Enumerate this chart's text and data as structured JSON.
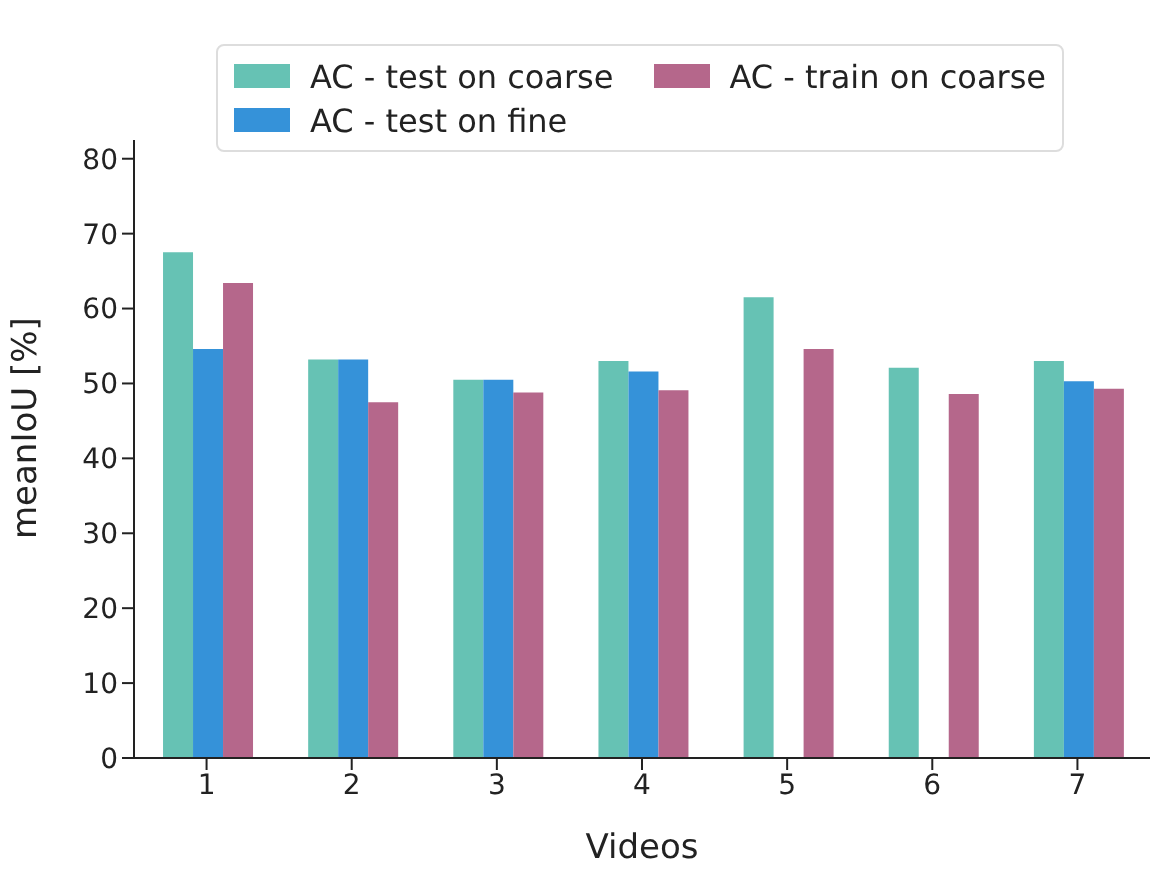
{
  "chart_data": {
    "type": "bar",
    "xlabel": "Videos",
    "ylabel": "meanIoU [%]",
    "categories": [
      "1",
      "2",
      "3",
      "4",
      "5",
      "6",
      "7"
    ],
    "series": [
      {
        "name": "AC - test on coarse",
        "color": "#66c2b4",
        "values": [
          67.5,
          53.2,
          50.5,
          53.0,
          61.5,
          52.1,
          53.0
        ]
      },
      {
        "name": "AC - test on fine",
        "color": "#3592d9",
        "values": [
          54.6,
          53.2,
          50.5,
          51.6,
          null,
          null,
          50.3
        ]
      },
      {
        "name": "AC - train on coarse",
        "color": "#b5678b",
        "values": [
          63.4,
          47.5,
          48.8,
          49.1,
          54.6,
          48.6,
          49.3
        ]
      }
    ],
    "ylim": [
      0,
      82.5
    ],
    "yticks": [
      0,
      10,
      20,
      30,
      40,
      50,
      60,
      70,
      80
    ],
    "grid": false,
    "legend": "top"
  }
}
